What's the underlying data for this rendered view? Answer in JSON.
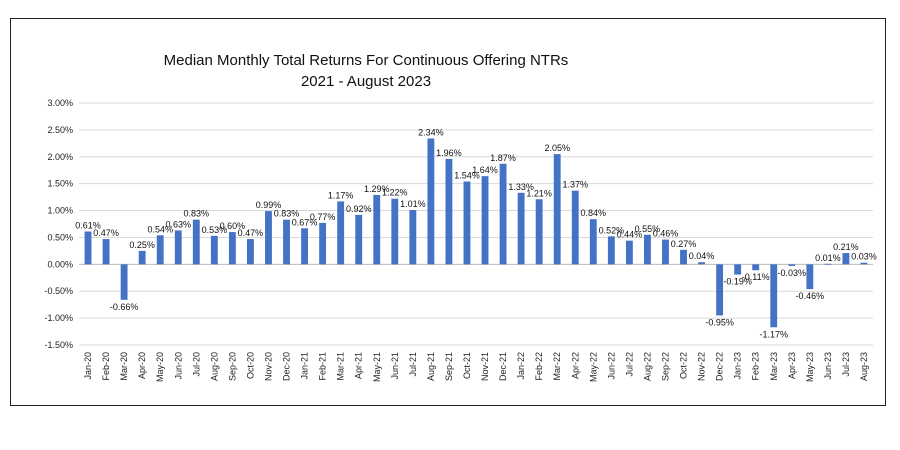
{
  "chart_data": {
    "type": "bar",
    "title": "Median Monthly Total Returns For Continuous  Offering NTRs",
    "subtitle": "2021 - August 2023",
    "xlabel": "",
    "ylabel": "",
    "ylim": [
      -1.5,
      3.0
    ],
    "yticks": [
      "3.00%",
      "2.50%",
      "2.00%",
      "1.50%",
      "1.00%",
      "0.50%",
      "0.00%",
      "-0.50%",
      "-1.00%",
      "-1.50%"
    ],
    "ytick_values": [
      3.0,
      2.5,
      2.0,
      1.5,
      1.0,
      0.5,
      0.0,
      -0.5,
      -1.0,
      -1.5
    ],
    "grid": true,
    "legend": "none",
    "bar_color": "#4472C4",
    "categories": [
      "Jan-20",
      "Feb-20",
      "Mar-20",
      "Apr-20",
      "May-20",
      "Jun-20",
      "Jul-20",
      "Aug-20",
      "Sep-20",
      "Oct-20",
      "Nov-20",
      "Dec-20",
      "Jan-21",
      "Feb-21",
      "Mar-21",
      "Apr-21",
      "May-21",
      "Jun-21",
      "Jul-21",
      "Aug-21",
      "Sep-21",
      "Oct-21",
      "Nov-21",
      "Dec-21",
      "Jan-22",
      "Feb-22",
      "Mar-22",
      "Apr-22",
      "May-22",
      "Jun-22",
      "Jul-22",
      "Aug-22",
      "Sep-22",
      "Oct-22",
      "Nov-22",
      "Dec-22",
      "Jan-23",
      "Feb-23",
      "Mar-23",
      "Apr-23",
      "May-23",
      "Jun-23",
      "Jul-23",
      "Aug-23"
    ],
    "values": [
      0.61,
      0.47,
      -0.66,
      0.25,
      0.54,
      0.63,
      0.83,
      0.53,
      0.6,
      0.47,
      0.99,
      0.83,
      0.67,
      0.77,
      1.17,
      0.92,
      1.29,
      1.22,
      1.01,
      2.34,
      1.96,
      1.54,
      1.64,
      1.87,
      1.33,
      1.21,
      2.05,
      1.37,
      0.84,
      0.52,
      0.44,
      0.55,
      0.46,
      0.27,
      0.04,
      -0.95,
      -0.19,
      -0.11,
      -1.17,
      -0.03,
      -0.46,
      0.01,
      0.21,
      0.03
    ],
    "data_labels": [
      "0.61%",
      "0.47%",
      "-0.66%",
      "0.25%",
      "0.54%",
      "0.63%",
      "0.83%",
      "0.53%",
      "0.60%",
      "0.47%",
      "0.99%",
      "0.83%",
      "0.67%",
      "0.77%",
      "1.17%",
      "0.92%",
      "1.29%",
      "1.22%",
      "1.01%",
      "2.34%",
      "1.96%",
      "1.54%",
      "1.64%",
      "1.87%",
      "1.33%",
      "1.21%",
      "2.05%",
      "1.37%",
      "0.84%",
      "0.52%",
      "0.44%",
      "0.55%",
      "0.46%",
      "0.27%",
      "0.04%",
      "-0.95%",
      "-0.19%",
      "-0.11%",
      "-1.17%",
      "-0.03%",
      "-0.46%",
      "0.01%",
      "0.21%",
      "0.03%"
    ]
  }
}
